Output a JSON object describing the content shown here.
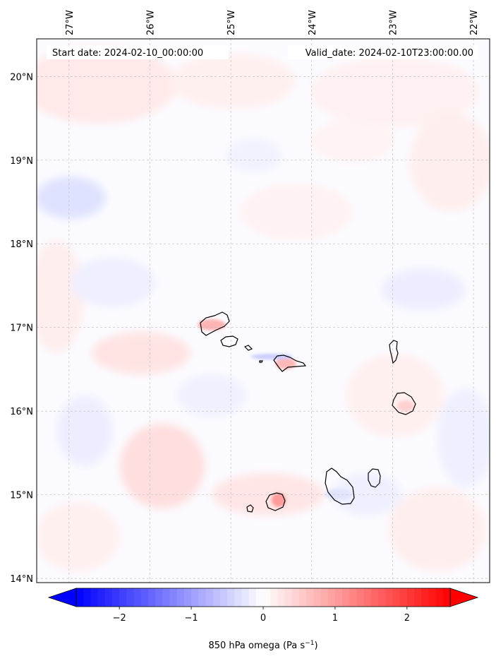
{
  "header": {
    "start_date": "Start date: 2024-02-10_00:00:00",
    "valid_date": "Valid_date: 2024-02-10T23:00:00.00"
  },
  "map": {
    "lon_range": [
      -27.4,
      -21.8
    ],
    "lat_range": [
      13.95,
      20.45
    ],
    "lon_ticks": [
      {
        "value": -27,
        "label": "27°W"
      },
      {
        "value": -26,
        "label": "26°W"
      },
      {
        "value": -25,
        "label": "25°W"
      },
      {
        "value": -24,
        "label": "24°W"
      },
      {
        "value": -23,
        "label": "23°W"
      },
      {
        "value": -22,
        "label": "22°W"
      }
    ],
    "lat_ticks": [
      {
        "value": 20,
        "label": "20°N"
      },
      {
        "value": 19,
        "label": "19°N"
      },
      {
        "value": 18,
        "label": "18°N"
      },
      {
        "value": 17,
        "label": "17°N"
      },
      {
        "value": 16,
        "label": "16°N"
      },
      {
        "value": 15,
        "label": "15°N"
      },
      {
        "value": 14,
        "label": "14°N"
      }
    ],
    "gridlines": true,
    "colors": {
      "negative": "#0000ff",
      "neutral": "#ffffff",
      "positive": "#ff0000",
      "coast": "#000000"
    }
  },
  "colorbar": {
    "range": [
      -2.6,
      2.6
    ],
    "ticks": [
      {
        "value": -2,
        "label": "−2"
      },
      {
        "value": -1,
        "label": "−1"
      },
      {
        "value": 0,
        "label": "0"
      },
      {
        "value": 1,
        "label": "1"
      },
      {
        "value": 2,
        "label": "2"
      }
    ],
    "label_main": "850 hPa omega (Pa s",
    "label_exp": "−1",
    "label_close": ")"
  }
}
